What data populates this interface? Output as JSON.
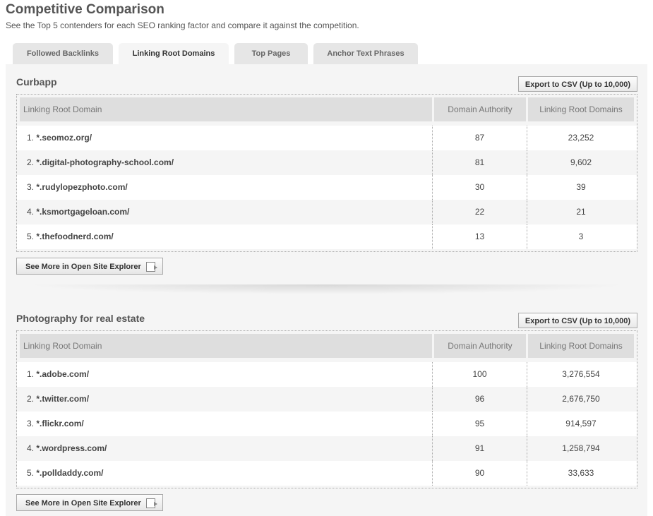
{
  "page": {
    "title": "Competitive Comparison",
    "subtitle": "See the Top 5 contenders for each SEO ranking factor and compare it against the competition."
  },
  "tabs": [
    {
      "label": "Followed Backlinks",
      "active": false
    },
    {
      "label": "Linking Root Domains",
      "active": true
    },
    {
      "label": "Top Pages",
      "active": false
    },
    {
      "label": "Anchor Text Phrases",
      "active": false
    }
  ],
  "sections": [
    {
      "title": "Curbapp",
      "export_label": "Export to CSV (Up to 10,000)",
      "more_label": "See More in Open Site Explorer",
      "columns": [
        "Linking Root Domain",
        "Domain Authority",
        "Linking Root Domains"
      ],
      "rows": [
        {
          "rank": "1.",
          "domain": "*.seomoz.org/",
          "da": "87",
          "lrd": "23,252"
        },
        {
          "rank": "2.",
          "domain": "*.digital-photography-school.com/",
          "da": "81",
          "lrd": "9,602"
        },
        {
          "rank": "3.",
          "domain": "*.rudylopezphoto.com/",
          "da": "30",
          "lrd": "39"
        },
        {
          "rank": "4.",
          "domain": "*.ksmortgageloan.com/",
          "da": "22",
          "lrd": "21"
        },
        {
          "rank": "5.",
          "domain": "*.thefoodnerd.com/",
          "da": "13",
          "lrd": "3"
        }
      ]
    },
    {
      "title": "Photography for real estate",
      "export_label": "Export to CSV (Up to 10,000)",
      "more_label": "See More in Open Site Explorer",
      "columns": [
        "Linking Root Domain",
        "Domain Authority",
        "Linking Root Domains"
      ],
      "rows": [
        {
          "rank": "1.",
          "domain": "*.adobe.com/",
          "da": "100",
          "lrd": "3,276,554"
        },
        {
          "rank": "2.",
          "domain": "*.twitter.com/",
          "da": "96",
          "lrd": "2,676,750"
        },
        {
          "rank": "3.",
          "domain": "*.flickr.com/",
          "da": "95",
          "lrd": "914,597"
        },
        {
          "rank": "4.",
          "domain": "*.wordpress.com/",
          "da": "91",
          "lrd": "1,258,794"
        },
        {
          "rank": "5.",
          "domain": "*.polldaddy.com/",
          "da": "90",
          "lrd": "33,633"
        }
      ]
    }
  ]
}
